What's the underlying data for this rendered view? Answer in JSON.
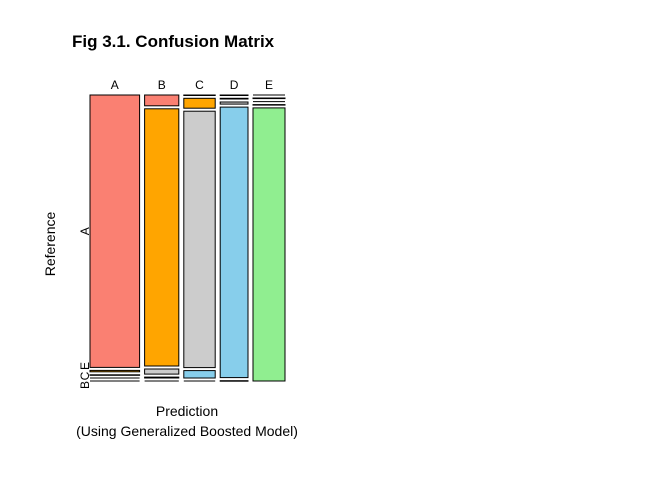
{
  "chart_data": {
    "type": "mosaic",
    "title": "Fig 3.1. Confusion Matrix",
    "xlabel": "Prediction",
    "xlabel_sub": "(Using Generalized Boosted Model)",
    "ylabel": "Reference",
    "prediction_classes": [
      "A",
      "B",
      "C",
      "D",
      "E"
    ],
    "reference_classes": [
      "A",
      "B",
      "C",
      "D",
      "E"
    ],
    "reference_tick_labels": [
      "A",
      "B",
      "C",
      "E"
    ],
    "colors": {
      "A": "#fa8072",
      "B": "#ffa500",
      "C": "#cccccc",
      "D": "#87ceeb",
      "E": "#90ee90"
    },
    "counts": {
      "A": {
        "A": 1394,
        "B": 38,
        "C": 1,
        "D": 1,
        "E": 0
      },
      "B": {
        "A": 7,
        "B": 906,
        "C": 32,
        "D": 2,
        "E": 2
      },
      "C": {
        "A": 1,
        "B": 18,
        "C": 830,
        "D": 6,
        "E": 0
      },
      "D": {
        "A": 0,
        "B": 3,
        "C": 24,
        "D": 776,
        "E": 1
      },
      "E": {
        "A": 0,
        "B": 0,
        "C": 0,
        "D": 1,
        "E": 900
      }
    }
  }
}
